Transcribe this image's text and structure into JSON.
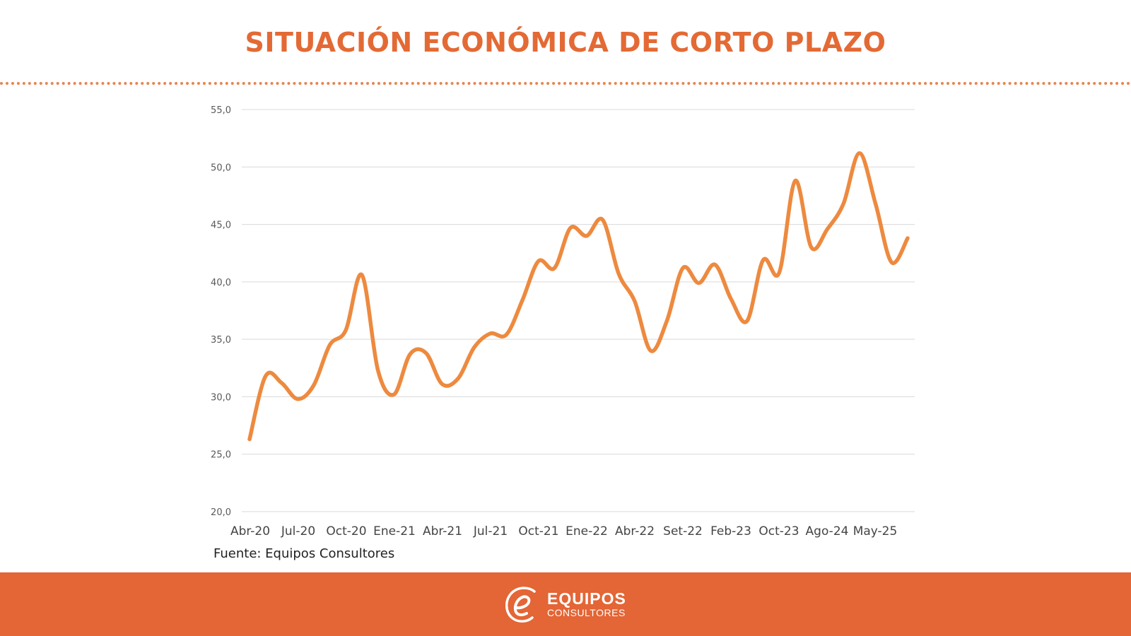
{
  "page": {
    "title": "SITUACIÓN ECONÓMICA DE CORTO PLAZO",
    "source": "Fuente: Equipos Consultores"
  },
  "footer": {
    "logo_icon": "e-letter-icon",
    "logo_main": "EQUIPOS",
    "logo_sub": "CONSULTORES"
  },
  "colors": {
    "accent": "#e36a35",
    "line": "#ed8a3f",
    "footer": "#e46535",
    "grid": "#d9d9d9"
  },
  "chart_data": {
    "type": "line",
    "title": "",
    "xlabel": "",
    "ylabel": "",
    "ylim": [
      20,
      55
    ],
    "yticks": [
      20,
      25,
      30,
      35,
      40,
      45,
      50,
      55
    ],
    "ytick_labels": [
      "20,0",
      "25,0",
      "30,0",
      "35,0",
      "40,0",
      "45,0",
      "50,0",
      "55,0"
    ],
    "xtick_labels": [
      "Abr-20",
      "Jul-20",
      "Oct-20",
      "Ene-21",
      "Abr-21",
      "Jul-21",
      "Oct-21",
      "Ene-22",
      "Abr-22",
      "Set-22",
      "Feb-23",
      "Oct-23",
      "Ago-24",
      "May-25"
    ],
    "grid": true,
    "series": [
      {
        "name": "Situación económica de corto plazo",
        "values": [
          26.3,
          31.8,
          31.2,
          29.8,
          31.0,
          34.5,
          35.8,
          40.6,
          32.3,
          30.2,
          33.7,
          33.8,
          31.1,
          31.6,
          34.3,
          35.5,
          35.4,
          38.4,
          41.8,
          41.2,
          44.7,
          44.0,
          45.4,
          40.7,
          38.3,
          34.0,
          36.6,
          41.2,
          39.9,
          41.5,
          38.5,
          36.6,
          41.9,
          40.8,
          48.8,
          43.0,
          44.6,
          46.8,
          51.2,
          46.8,
          41.7,
          43.8
        ]
      }
    ]
  }
}
